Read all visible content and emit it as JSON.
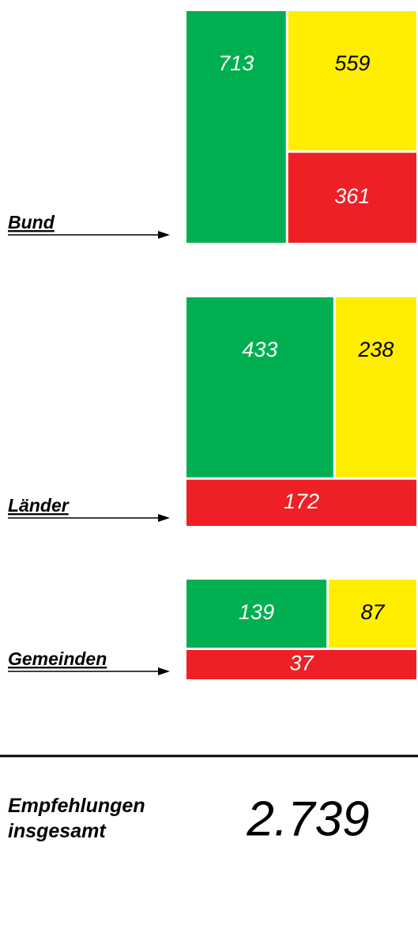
{
  "chart_data": [
    {
      "type": "treemap",
      "title": "Bund",
      "values": [
        713,
        559,
        361
      ],
      "colors": [
        "#00b050",
        "#ffee00",
        "#ee2026"
      ]
    },
    {
      "type": "treemap",
      "title": "Länder",
      "values": [
        433,
        238,
        172
      ],
      "colors": [
        "#00b050",
        "#ffee00",
        "#ee2026"
      ]
    },
    {
      "type": "treemap",
      "title": "Gemeinden",
      "values": [
        139,
        87,
        37
      ],
      "colors": [
        "#00b050",
        "#ffee00",
        "#ee2026"
      ]
    }
  ],
  "total": {
    "label": "Empfehlungen insgesamt",
    "value": 2739,
    "value_label": "2.739"
  }
}
